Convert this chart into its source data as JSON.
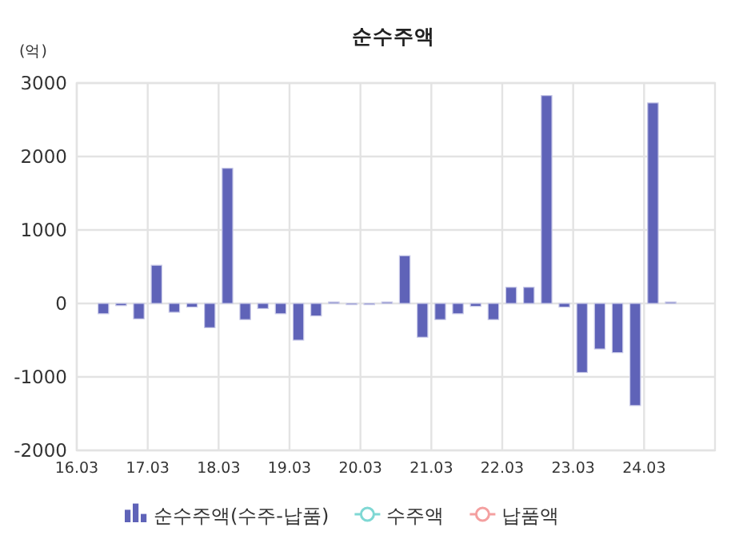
{
  "chart_data": {
    "type": "bar",
    "title": "순수주액",
    "ylabel": "(억)",
    "categories": [
      "16.03",
      null,
      null,
      null,
      "17.03",
      null,
      null,
      null,
      "18.03",
      null,
      null,
      null,
      "19.03",
      null,
      null,
      null,
      "20.03",
      null,
      null,
      null,
      "21.03",
      null,
      null,
      null,
      "22.03",
      null,
      null,
      null,
      "23.03",
      null,
      null,
      null,
      "24.03",
      null,
      null,
      null
    ],
    "series": [
      {
        "name": "순수주액(수주-납품)",
        "color": "#5f63b8",
        "values": [
          null,
          -140,
          -30,
          -210,
          520,
          -120,
          -50,
          -330,
          1840,
          -220,
          -70,
          -140,
          -500,
          -170,
          20,
          0,
          0,
          20,
          650,
          -460,
          -220,
          -140,
          -40,
          -220,
          220,
          220,
          2830,
          -50,
          -940,
          -620,
          -670,
          -1390,
          2730,
          20,
          null,
          null
        ]
      },
      {
        "name": "수주액",
        "type": "line",
        "color": "#7fd8d4",
        "marker": "circle",
        "values": [
          null,
          null,
          null,
          null,
          null,
          null,
          null,
          null,
          null,
          null,
          null,
          null,
          null,
          null,
          null,
          null,
          null,
          null,
          null,
          null,
          null,
          null,
          null,
          null,
          null,
          null,
          null,
          null,
          null,
          null,
          null,
          null,
          null,
          null,
          null,
          null
        ]
      },
      {
        "name": "납품액",
        "type": "line",
        "color": "#f4a0a0",
        "marker": "circle",
        "values": [
          null,
          null,
          null,
          null,
          null,
          null,
          null,
          null,
          null,
          null,
          null,
          null,
          null,
          null,
          null,
          null,
          null,
          null,
          null,
          null,
          null,
          null,
          null,
          null,
          null,
          null,
          null,
          null,
          null,
          null,
          null,
          null,
          null,
          null,
          null,
          null
        ]
      }
    ],
    "ylim": [
      -2000,
      3000
    ],
    "yticks": [
      -2000,
      -1000,
      0,
      1000,
      2000,
      3000
    ],
    "grid": true,
    "legend": "bottom"
  }
}
